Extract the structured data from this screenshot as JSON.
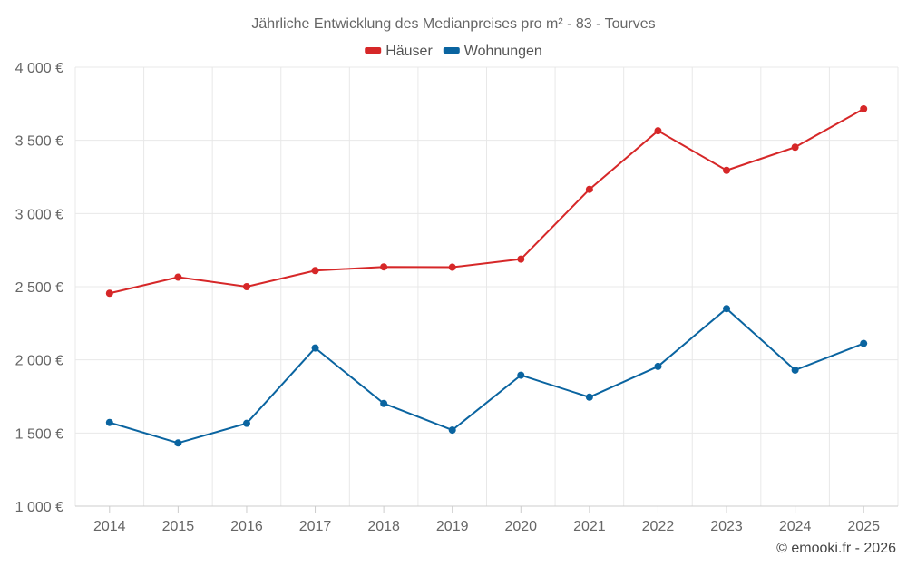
{
  "chart_data": {
    "type": "line",
    "title": "Jährliche Entwicklung des Medianpreises pro m² - 83 - Tourves",
    "categories": [
      "2014",
      "2015",
      "2016",
      "2017",
      "2018",
      "2019",
      "2020",
      "2021",
      "2022",
      "2023",
      "2024",
      "2025"
    ],
    "series": [
      {
        "name": "Häuser",
        "color": "#d62728",
        "values": [
          2455,
          2565,
          2500,
          2610,
          2635,
          2633,
          2688,
          3165,
          3565,
          3295,
          3453,
          3715
        ]
      },
      {
        "name": "Wohnungen",
        "color": "#0a64a0",
        "values": [
          1572,
          1432,
          1566,
          2081,
          1702,
          1520,
          1895,
          1745,
          1955,
          2350,
          1930,
          2112
        ]
      }
    ],
    "ylim": [
      1000,
      4000
    ],
    "yticks": [
      1000,
      1500,
      2000,
      2500,
      3000,
      3500,
      4000
    ],
    "ytick_labels": [
      "1 000 €",
      "1 500 €",
      "2 000 €",
      "2 500 €",
      "3 000 €",
      "3 500 €",
      "4 000 €"
    ],
    "xlabel": "",
    "ylabel": "",
    "grid": true,
    "legend": "top-center"
  },
  "credit": "© emooki.fr - 2026"
}
